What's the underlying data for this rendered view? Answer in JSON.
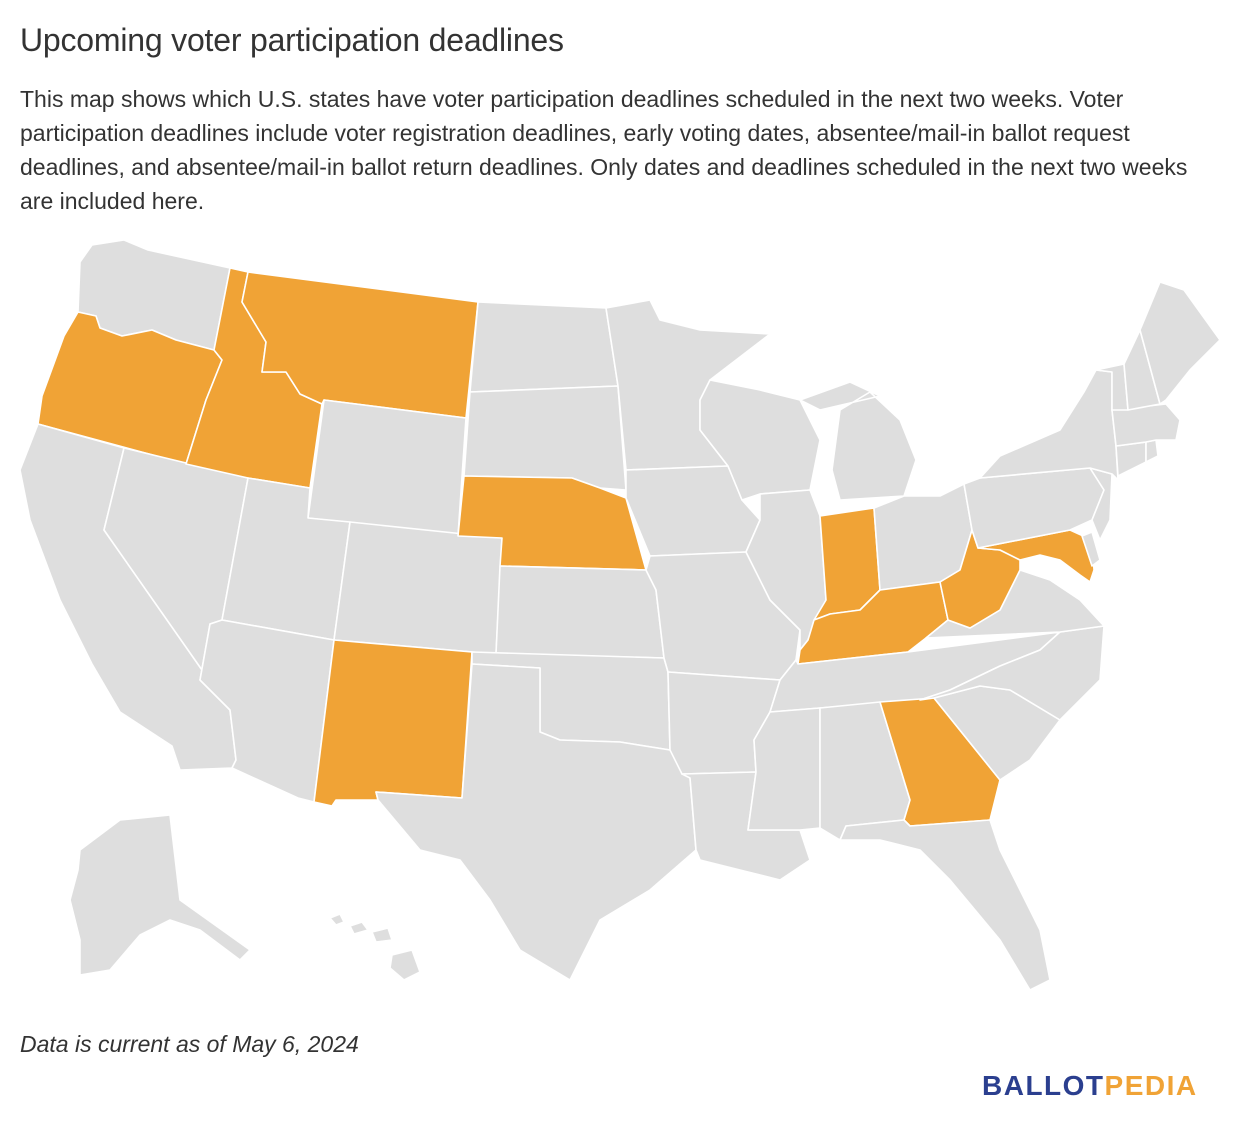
{
  "header": {
    "title": "Upcoming voter participation deadlines",
    "description": "This map shows which U.S. states have voter participation deadlines scheduled in the next two weeks. Voter participation deadlines include voter registration deadlines, early voting dates, absentee/mail-in ballot request deadlines, and absentee/mail-in ballot return deadlines. Only dates and deadlines scheduled in the next two weeks are included here."
  },
  "map": {
    "colors": {
      "highlight": "#f0a336",
      "default": "#dedede",
      "border": "#ffffff"
    },
    "highlighted_states": [
      "OR",
      "ID",
      "MT",
      "NE",
      "NM",
      "IN",
      "KY",
      "WV",
      "MD",
      "GA"
    ],
    "states": [
      "WA",
      "OR",
      "CA",
      "NV",
      "ID",
      "MT",
      "WY",
      "UT",
      "AZ",
      "CO",
      "NM",
      "ND",
      "SD",
      "NE",
      "KS",
      "OK",
      "TX",
      "MN",
      "IA",
      "MO",
      "AR",
      "LA",
      "WI",
      "IL",
      "MI",
      "IN",
      "OH",
      "KY",
      "TN",
      "MS",
      "AL",
      "GA",
      "FL",
      "SC",
      "NC",
      "VA",
      "WV",
      "MD",
      "DE",
      "PA",
      "NJ",
      "NY",
      "CT",
      "RI",
      "MA",
      "VT",
      "NH",
      "ME",
      "AK",
      "HI"
    ]
  },
  "footer": {
    "note": "Data is current as of May 6, 2024",
    "logo_part1": "BALLOT",
    "logo_part2": "PEDIA"
  }
}
